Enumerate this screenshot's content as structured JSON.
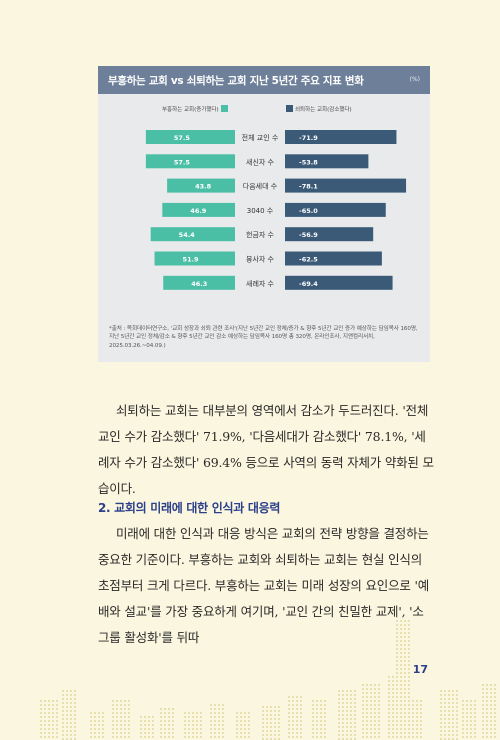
{
  "chart": {
    "title": "부흥하는 교회 vs 쇠퇴하는 교회 지난 5년간 주요 지표 변화",
    "unit": "(%)",
    "legend_growing": "부흥하는 교회(증가했다)",
    "legend_declining": "쇠퇴하는 교회(감소했다)",
    "source": "*출처 : 목회데이터연구소, '교회 성장과 쇠퇴 관련 조사'(지난 5년간 교인 정체/증가 & 향후 5년간 교인 증가 예상하는 담임목사 160명, 지난 5년간 교인 정체/감소 & 향후 5년간 교인 감소 예상하는 담임목사 160명 총 320명, 온라인조사, 지앤컴리서치, 2025.03.26.~04.09.)"
  },
  "chart_data": {
    "type": "bar",
    "categories": [
      "전체 교인 수",
      "새신자 수",
      "다음세대 수",
      "3040 수",
      "헌금자 수",
      "봉사자 수",
      "새례자 수"
    ],
    "series": [
      {
        "name": "부흥하는 교회(증가했다)",
        "values": [
          57.5,
          57.5,
          43.8,
          46.9,
          54.4,
          51.9,
          46.3
        ],
        "color": "#4bbfa6"
      },
      {
        "name": "쇠퇴하는 교회(감소했다)",
        "values": [
          -71.9,
          -53.8,
          -78.1,
          -65.0,
          -56.9,
          -62.5,
          -69.4
        ],
        "color": "#3b5a78"
      }
    ]
  },
  "body": {
    "para1": "쇠퇴하는 교회는 대부분의 영역에서 감소가 두드러진다. '전체 교인 수가 감소했다' 71.9%, '다음세대가 감소했다' 78.1%, '세례자 수가 감소했다' 69.4% 등으로 사역의 동력 자체가 약화된 모습이다.",
    "section_heading": "2. 교회의 미래에 대한 인식과 대응력",
    "para2": "미래에 대한 인식과 대응 방식은 교회의 전략 방향을 결정하는 중요한 기준이다. 부흥하는 교회와 쇠퇴하는 교회는 현실 인식의 초점부터 크게 다르다. 부흥하는 교회는 미래 성장의 요인으로 '예배와 설교'를 가장 중요하게 여기며, '교인 간의 친밀한 교제', '소그룹 활성화'를 뒤따"
  },
  "page_number": "17",
  "colors": {
    "background": "#fbf6df",
    "header": "#6e7f9a",
    "growing": "#4bbfa6",
    "declining": "#3b5a78",
    "accent": "#2b3f8a"
  }
}
